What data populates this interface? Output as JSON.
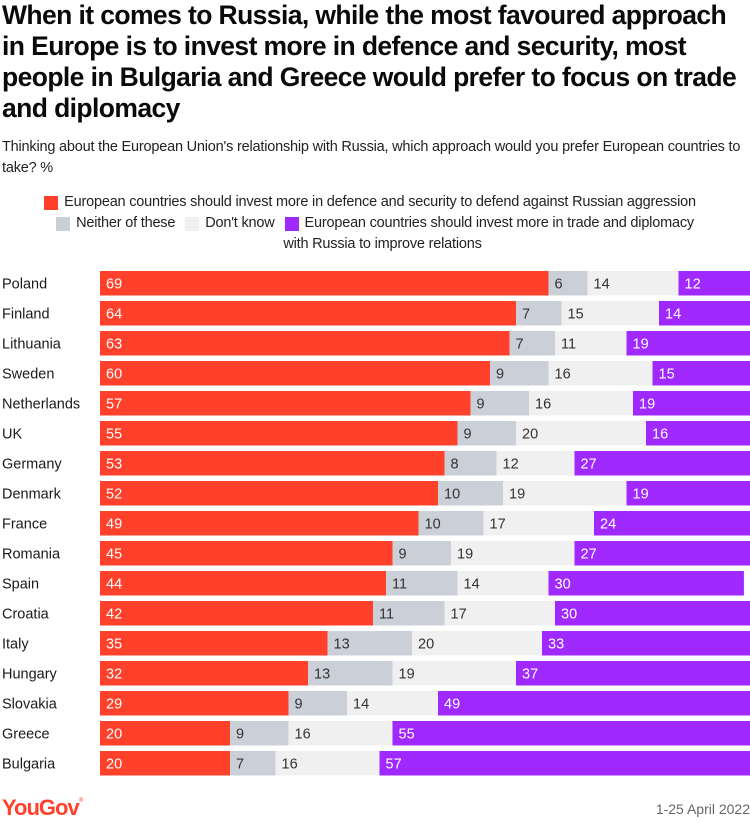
{
  "header": {
    "title": "When it comes to Russia, while the most favoured approach in Europe is to invest more in defence and security, most people in Bulgaria and Greece would prefer to focus on trade and diplomacy",
    "subtitle": "Thinking about the European Union's relationship with Russia, which approach would you prefer European countries to take? %"
  },
  "legend": {
    "items": [
      {
        "label": "European countries should invest more in defence and security to defend against Russian aggression",
        "color": "#ff412c"
      },
      {
        "label": "Neither of these",
        "color": "#cbd0d8"
      },
      {
        "label": "Don't know",
        "color": "#f0f0f0"
      },
      {
        "label": "European countries should invest more in trade and diplomacy",
        "continuation": "with Russia to improve relations",
        "color": "#9f29ff"
      }
    ]
  },
  "footer": {
    "logo": "YouGov",
    "logo_color": "#ff412c",
    "date": "1-25 April 2022"
  },
  "chart_data": {
    "type": "bar",
    "orientation": "horizontal",
    "stacked": true,
    "title": "When it comes to Russia, while the most favoured approach in Europe is to invest more in defence and security, most people in Bulgaria and Greece would prefer to focus on trade and diplomacy",
    "subtitle": "Thinking about the European Union's relationship with Russia, which approach would you prefer European countries to take? %",
    "xlabel": "",
    "ylabel": "",
    "xlim": [
      0,
      100
    ],
    "grid": false,
    "legend_position": "top",
    "categories": [
      "Poland",
      "Finland",
      "Lithuania",
      "Sweden",
      "Netherlands",
      "UK",
      "Germany",
      "Denmark",
      "France",
      "Romania",
      "Spain",
      "Croatia",
      "Italy",
      "Hungary",
      "Slovakia",
      "Greece",
      "Bulgaria"
    ],
    "series": [
      {
        "name": "European countries should invest more in defence and security to defend against Russian aggression",
        "color": "#ff412c",
        "label_color": "#ffffff",
        "values": [
          69,
          64,
          63,
          60,
          57,
          55,
          53,
          52,
          49,
          45,
          44,
          42,
          35,
          32,
          29,
          20,
          20
        ]
      },
      {
        "name": "Neither of these",
        "color": "#cbd0d8",
        "label_color": "#333333",
        "values": [
          6,
          7,
          7,
          9,
          9,
          9,
          8,
          10,
          10,
          9,
          11,
          11,
          13,
          13,
          9,
          9,
          7
        ]
      },
      {
        "name": "Don't know",
        "color": "#f0f0f0",
        "label_color": "#333333",
        "values": [
          14,
          15,
          11,
          16,
          16,
          20,
          12,
          19,
          17,
          19,
          14,
          17,
          20,
          19,
          14,
          16,
          16
        ]
      },
      {
        "name": "European countries should invest more in trade and diplomacy with Russia to improve relations",
        "color": "#9f29ff",
        "label_color": "#ffffff",
        "values": [
          12,
          14,
          19,
          15,
          19,
          16,
          27,
          19,
          24,
          27,
          30,
          30,
          33,
          37,
          49,
          55,
          57
        ]
      }
    ]
  }
}
